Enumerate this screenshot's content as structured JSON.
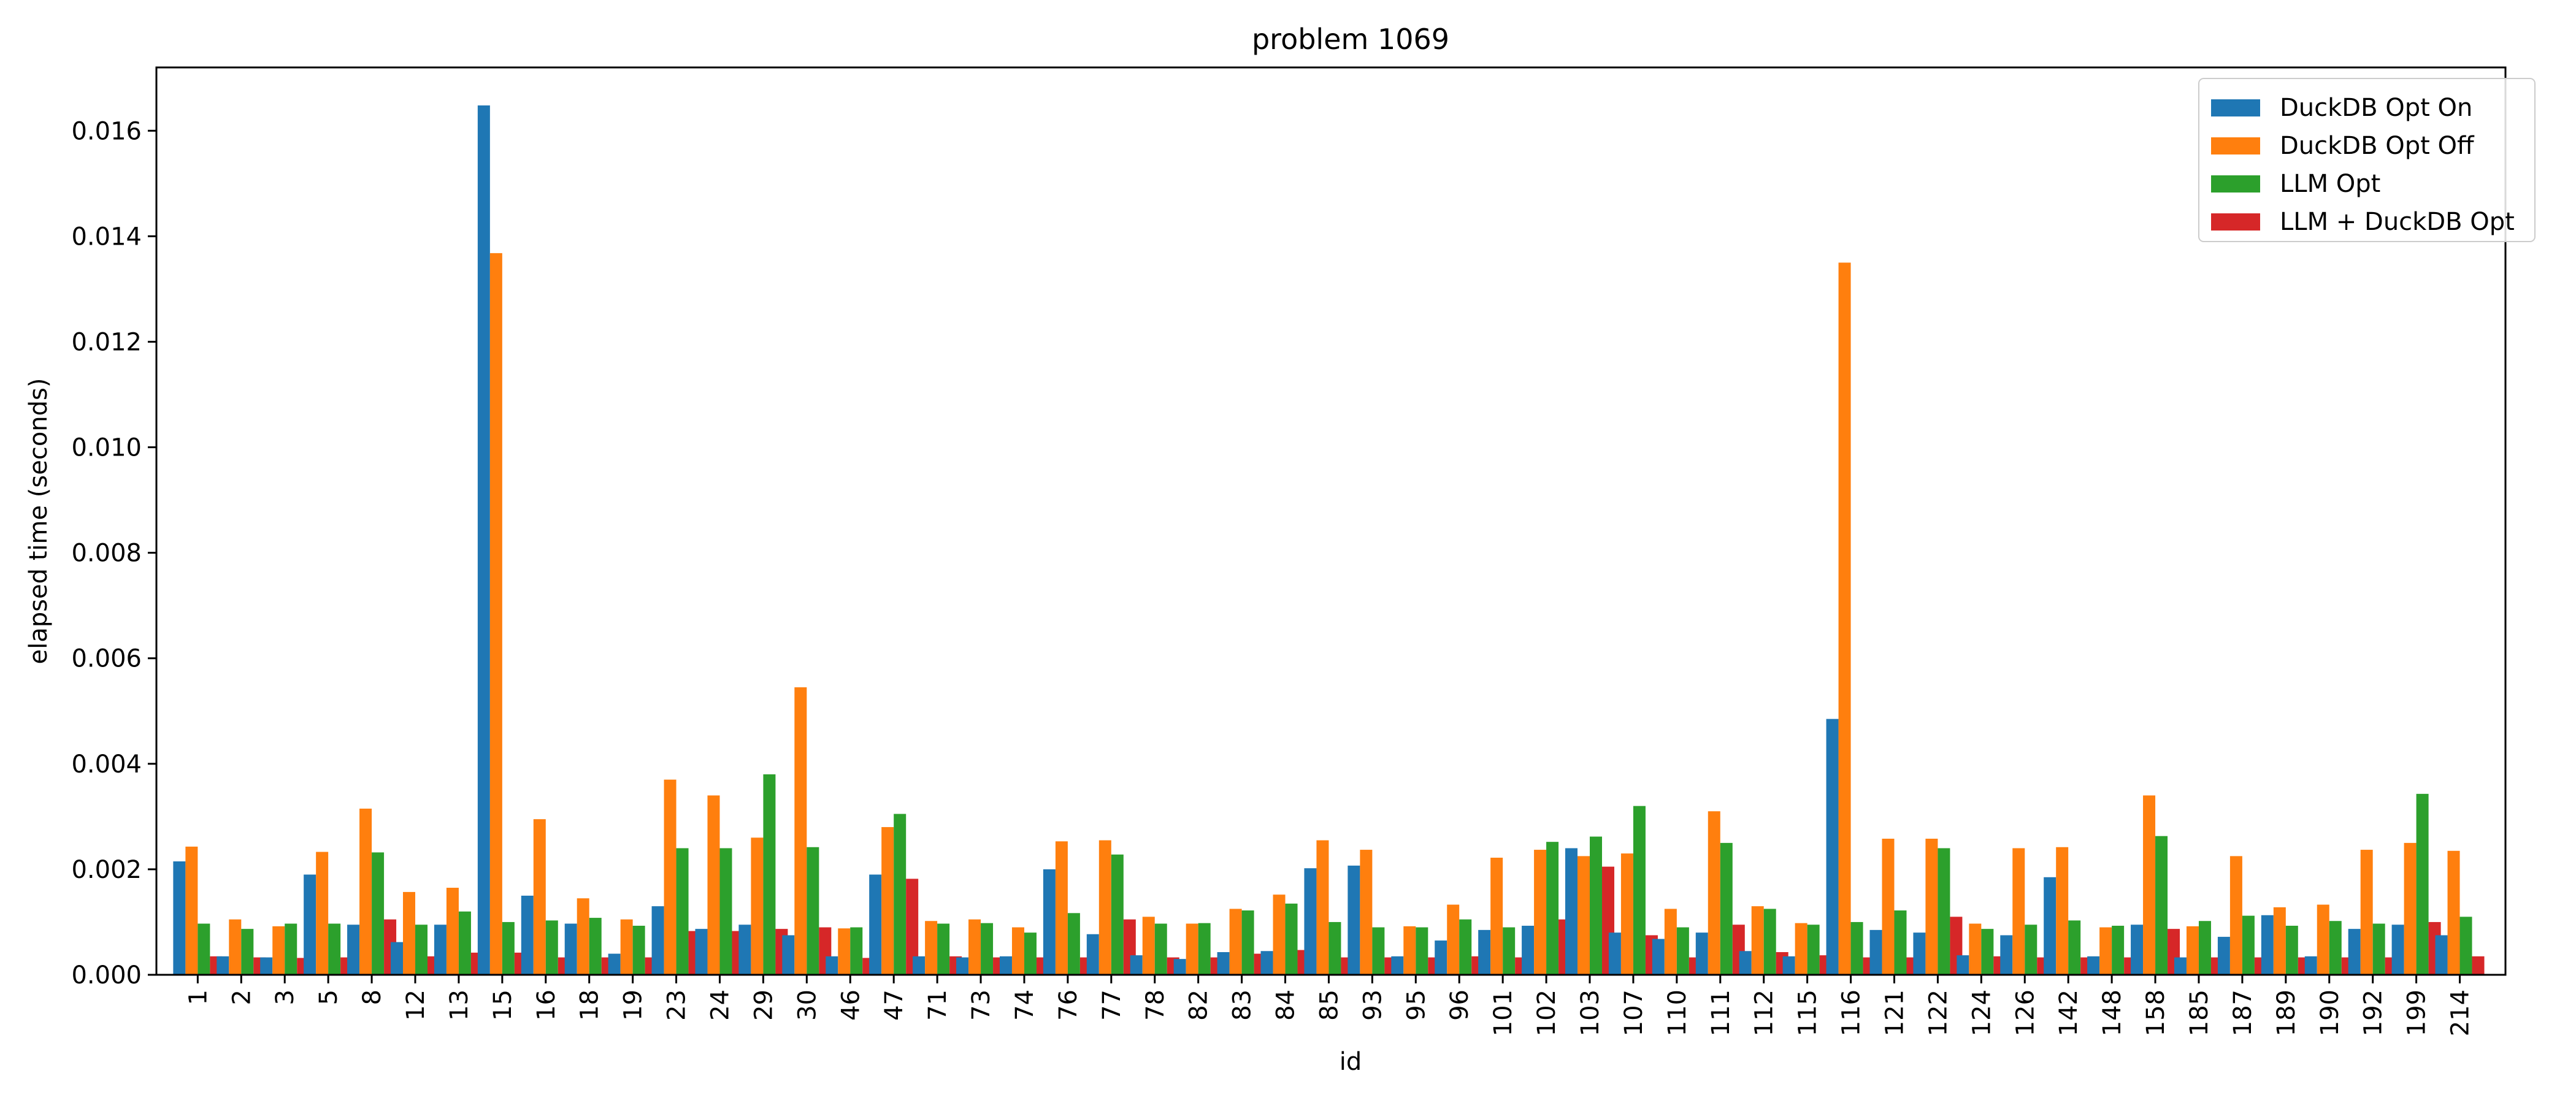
{
  "chart_data": {
    "type": "bar",
    "title": "problem 1069",
    "xlabel": "id",
    "ylabel": "elapsed time (seconds)",
    "ylim": [
      0,
      0.0172
    ],
    "yticks": [
      "0.000",
      "0.002",
      "0.004",
      "0.006",
      "0.008",
      "0.010",
      "0.012",
      "0.014",
      "0.016"
    ],
    "grid": false,
    "legend_position": "top-right",
    "categories": [
      "1",
      "2",
      "3",
      "5",
      "8",
      "12",
      "13",
      "15",
      "16",
      "18",
      "19",
      "23",
      "24",
      "29",
      "30",
      "46",
      "47",
      "71",
      "73",
      "74",
      "76",
      "77",
      "78",
      "82",
      "83",
      "84",
      "85",
      "93",
      "95",
      "96",
      "101",
      "102",
      "103",
      "107",
      "110",
      "111",
      "112",
      "115",
      "116",
      "121",
      "122",
      "124",
      "126",
      "142",
      "148",
      "158",
      "185",
      "187",
      "189",
      "190",
      "192",
      "199",
      "214"
    ],
    "series": [
      {
        "name": "DuckDB Opt On",
        "color": "#1f77b4",
        "values": [
          0.00215,
          0.00035,
          0.00033,
          0.0019,
          0.00095,
          0.00062,
          0.00095,
          0.01648,
          0.0015,
          0.00097,
          0.0004,
          0.0013,
          0.00087,
          0.00095,
          0.00075,
          0.00035,
          0.0019,
          0.00035,
          0.00033,
          0.00035,
          0.002,
          0.00077,
          0.00037,
          0.0003,
          0.00043,
          0.00045,
          0.00202,
          0.00207,
          0.00035,
          0.00065,
          0.00085,
          0.00093,
          0.0024,
          0.0008,
          0.00068,
          0.0008,
          0.00045,
          0.00035,
          0.00485,
          0.00085,
          0.0008,
          0.00037,
          0.00075,
          0.00185,
          0.00035,
          0.00095,
          0.00033,
          0.00072,
          0.00113,
          0.00035,
          0.00087,
          0.00095,
          0.00075
        ]
      },
      {
        "name": "DuckDB Opt Off",
        "color": "#ff7f0e",
        "values": [
          0.00243,
          0.00105,
          0.00092,
          0.00233,
          0.00315,
          0.00157,
          0.00165,
          0.01368,
          0.00295,
          0.00145,
          0.00105,
          0.0037,
          0.0034,
          0.0026,
          0.00545,
          0.00088,
          0.0028,
          0.00102,
          0.00105,
          0.0009,
          0.00253,
          0.00255,
          0.0011,
          0.00097,
          0.00125,
          0.00152,
          0.00255,
          0.00237,
          0.00092,
          0.00133,
          0.00222,
          0.00237,
          0.00225,
          0.0023,
          0.00125,
          0.0031,
          0.0013,
          0.00098,
          0.0135,
          0.00258,
          0.00258,
          0.00097,
          0.0024,
          0.00242,
          0.0009,
          0.0034,
          0.00092,
          0.00225,
          0.00128,
          0.00133,
          0.00237,
          0.0025,
          0.00235
        ]
      },
      {
        "name": "LLM Opt",
        "color": "#2ca02c",
        "values": [
          0.00097,
          0.00087,
          0.00097,
          0.00097,
          0.00232,
          0.00095,
          0.0012,
          0.001,
          0.00103,
          0.00108,
          0.00093,
          0.0024,
          0.0024,
          0.0038,
          0.00242,
          0.0009,
          0.00305,
          0.00097,
          0.00098,
          0.0008,
          0.00117,
          0.00228,
          0.00097,
          0.00098,
          0.00122,
          0.00135,
          0.001,
          0.0009,
          0.0009,
          0.00105,
          0.0009,
          0.00252,
          0.00262,
          0.0032,
          0.0009,
          0.0025,
          0.00125,
          0.00095,
          0.001,
          0.00122,
          0.0024,
          0.00087,
          0.00095,
          0.00103,
          0.00093,
          0.00263,
          0.00102,
          0.00112,
          0.00093,
          0.00102,
          0.00097,
          0.00343,
          0.0011
        ]
      },
      {
        "name": "LLM + DuckDB Opt",
        "color": "#d62728",
        "values": [
          0.00035,
          0.00033,
          0.00032,
          0.00033,
          0.00105,
          0.00035,
          0.00042,
          0.00042,
          0.00033,
          0.00033,
          0.00033,
          0.00083,
          0.00083,
          0.00087,
          0.0009,
          0.00032,
          0.00182,
          0.00035,
          0.00033,
          0.00033,
          0.00033,
          0.00105,
          0.00033,
          0.00033,
          0.0004,
          0.00047,
          0.00033,
          0.00033,
          0.00033,
          0.00035,
          0.00033,
          0.00105,
          0.00205,
          0.00075,
          0.00033,
          0.00095,
          0.00043,
          0.00037,
          0.00033,
          0.00033,
          0.0011,
          0.00035,
          0.00033,
          0.00033,
          0.00033,
          0.00087,
          0.00033,
          0.00033,
          0.00033,
          0.00033,
          0.00033,
          0.001,
          0.00035
        ]
      }
    ]
  }
}
